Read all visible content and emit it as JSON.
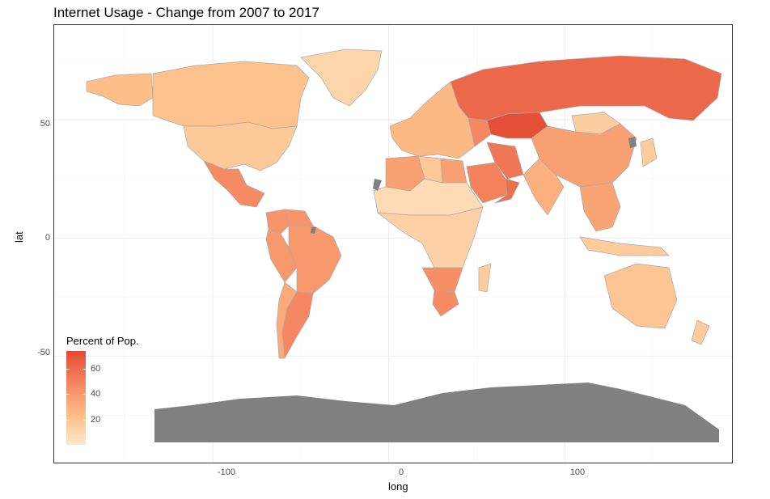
{
  "chart_data": {
    "type": "choropleth",
    "title": "Internet Usage - Change from 2007 to 2017",
    "xlabel": "long",
    "ylabel": "lat",
    "xlim": [
      -190,
      195
    ],
    "ylim": [
      -95,
      90
    ],
    "x_ticks": [
      -100,
      0,
      100
    ],
    "y_ticks": [
      -50,
      0,
      50
    ],
    "grid": true,
    "legend": {
      "title": "Percent of Pop.",
      "ticks": [
        20,
        40,
        60
      ],
      "range": [
        0,
        70
      ],
      "colors": [
        "#FEE8C8",
        "#FDBB84",
        "#F4845F",
        "#E34A33"
      ],
      "placement": "bottom-left"
    },
    "missing_color": "#808080",
    "regions": [
      {
        "name": "Kazakhstan",
        "value": 68
      },
      {
        "name": "Russia",
        "value": 58
      },
      {
        "name": "Oman",
        "value": 56
      },
      {
        "name": "Iran",
        "value": 52
      },
      {
        "name": "Saudi Arabia",
        "value": 48
      },
      {
        "name": "Argentina",
        "value": 45
      },
      {
        "name": "Mexico",
        "value": 44
      },
      {
        "name": "South Africa",
        "value": 44
      },
      {
        "name": "Brazil",
        "value": 38
      },
      {
        "name": "Peru",
        "value": 38
      },
      {
        "name": "Venezuela",
        "value": 40
      },
      {
        "name": "Colombia",
        "value": 40
      },
      {
        "name": "Botswana",
        "value": 42
      },
      {
        "name": "Algeria",
        "value": 35
      },
      {
        "name": "Egypt",
        "value": 35
      },
      {
        "name": "Ukraine",
        "value": 45
      },
      {
        "name": "China",
        "value": 35
      },
      {
        "name": "Southeast Asia",
        "value": 33
      },
      {
        "name": "India",
        "value": 28
      },
      {
        "name": "Chile",
        "value": 30
      },
      {
        "name": "Libya",
        "value": 16
      },
      {
        "name": "Europe",
        "value": 24
      },
      {
        "name": "Canada",
        "value": 20
      },
      {
        "name": "United States",
        "value": 16
      },
      {
        "name": "Mongolia",
        "value": 14
      },
      {
        "name": "Australia",
        "value": 18
      },
      {
        "name": "Central Africa",
        "value": 12
      },
      {
        "name": "Greenland",
        "value": 10
      },
      {
        "name": "Alaska",
        "value": 22
      },
      {
        "name": "Sahel",
        "value": 7
      }
    ]
  }
}
